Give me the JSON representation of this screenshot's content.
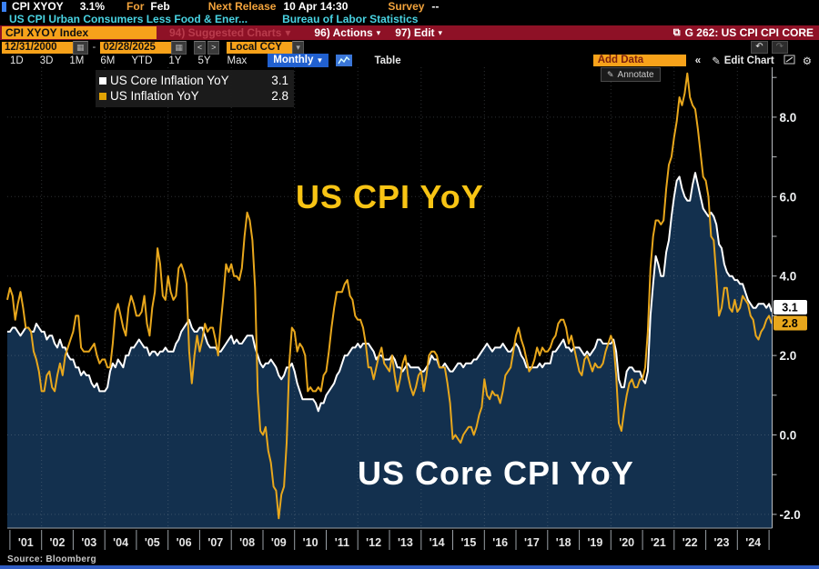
{
  "top_bar": {
    "ticker": "CPI XYOY",
    "last_value": "3.1%",
    "for_label": "For",
    "for_value": "Feb",
    "next_release_label": "Next Release",
    "next_release_value": "10 Apr 14:30",
    "survey_label": "Survey",
    "survey_value": "--",
    "description": "US CPI Urban Consumers Less Food & Ener...",
    "source_org": "Bureau of Labor Statistics"
  },
  "command_bar": {
    "security": "CPI XYOY Index",
    "suggested_charts": "94) Suggested Charts",
    "actions": "96) Actions",
    "edit": "97) Edit",
    "caret": "▾",
    "chart_id": "G 262: US CPI CPI CORE"
  },
  "toolbar": {
    "date_from": "12/31/2000",
    "date_to": "02/28/2025",
    "range_sep": "-",
    "prev": "<",
    "next": ">",
    "currency": "Local CCY",
    "periods": [
      "1D",
      "3D",
      "1M",
      "6M",
      "YTD",
      "1Y",
      "5Y",
      "Max"
    ],
    "frequency": "Monthly",
    "freq_caret": "▼",
    "table_label": "Table",
    "add_data_label": "Add Data",
    "collapse": "«",
    "edit_chart_label": "Edit Chart"
  },
  "legend": {
    "rows": [
      {
        "label": "US Core Inflation YoY",
        "value": "3.1",
        "color": "#ffffff"
      },
      {
        "label": "US Inflation YoY",
        "value": "2.8",
        "color": "#e2a405"
      }
    ]
  },
  "annotate_label": "Annotate",
  "annotations": {
    "headline_label": "US CPI YoY",
    "core_label": "US Core CPI YoY"
  },
  "source_label": "Source: Bloomberg",
  "colors": {
    "headline_line": "#e8a71c",
    "core_line": "#ffffff",
    "core_fill": "#13304e",
    "accent_orange": "#f7a21a",
    "bar_red": "#8e1126",
    "freq_blue": "#2160cf",
    "big_label_gold": "#f8c414"
  },
  "chart_data": {
    "type": "line",
    "title": "G 262: US CPI CPI CORE",
    "x_start": "2000-12",
    "x_end": "2025-02",
    "frequency": "monthly",
    "ylim": [
      -2.4,
      9.3
    ],
    "y_ticks": [
      8.0,
      6.0,
      4.0,
      2.0,
      0.0,
      -2.0
    ],
    "x_tick_labels": [
      "'01",
      "'02",
      "'03",
      "'04",
      "'05",
      "'06",
      "'07",
      "'08",
      "'09",
      "'10",
      "'11",
      "'12",
      "'13",
      "'14",
      "'15",
      "'16",
      "'17",
      "'18",
      "'19",
      "'20",
      "'21",
      "'22",
      "'23",
      "'24"
    ],
    "grid": true,
    "legend_position": "top-left",
    "series": [
      {
        "name": "US Core Inflation YoY",
        "style": "area",
        "color": "#ffffff",
        "fill": "#13304e",
        "last_value": "3.1",
        "values": [
          2.6,
          2.6,
          2.7,
          2.7,
          2.6,
          2.5,
          2.6,
          2.7,
          2.7,
          2.6,
          2.6,
          2.8,
          2.7,
          2.6,
          2.6,
          2.4,
          2.5,
          2.5,
          2.3,
          2.2,
          2.4,
          2.2,
          2.2,
          2.0,
          1.9,
          1.9,
          1.7,
          1.7,
          1.5,
          1.6,
          1.5,
          1.5,
          1.3,
          1.2,
          1.3,
          1.1,
          1.1,
          1.1,
          1.2,
          1.6,
          1.8,
          1.7,
          1.9,
          1.8,
          1.7,
          2.0,
          2.0,
          2.2,
          2.2,
          2.3,
          2.4,
          2.3,
          2.2,
          2.2,
          2.0,
          2.1,
          2.1,
          2.0,
          2.1,
          2.1,
          2.2,
          2.1,
          2.1,
          2.1,
          2.3,
          2.4,
          2.6,
          2.7,
          2.8,
          2.9,
          2.7,
          2.6,
          2.6,
          2.7,
          2.7,
          2.5,
          2.3,
          2.2,
          2.2,
          2.2,
          2.1,
          2.1,
          2.2,
          2.3,
          2.4,
          2.5,
          2.3,
          2.4,
          2.3,
          2.3,
          2.4,
          2.5,
          2.5,
          2.5,
          2.2,
          2.0,
          1.8,
          1.7,
          1.8,
          1.8,
          1.9,
          1.8,
          1.7,
          1.5,
          1.4,
          1.5,
          1.7,
          1.7,
          1.8,
          1.6,
          1.3,
          1.1,
          0.9,
          0.9,
          0.9,
          0.9,
          0.9,
          0.8,
          0.6,
          0.8,
          0.8,
          1.0,
          1.1,
          1.2,
          1.3,
          1.5,
          1.6,
          1.8,
          2.0,
          2.0,
          2.1,
          2.2,
          2.2,
          2.3,
          2.2,
          2.3,
          2.3,
          2.3,
          2.2,
          2.1,
          1.9,
          2.0,
          2.0,
          1.9,
          1.9,
          1.9,
          2.0,
          1.9,
          1.7,
          1.7,
          1.6,
          1.7,
          1.8,
          1.7,
          1.7,
          1.7,
          1.7,
          1.6,
          1.6,
          1.7,
          1.8,
          2.0,
          1.9,
          1.9,
          1.7,
          1.7,
          1.8,
          1.7,
          1.6,
          1.6,
          1.7,
          1.8,
          1.8,
          1.7,
          1.8,
          1.8,
          1.8,
          1.9,
          1.9,
          2.0,
          2.1,
          2.2,
          2.3,
          2.2,
          2.1,
          2.2,
          2.2,
          2.2,
          2.3,
          2.2,
          2.1,
          2.1,
          2.2,
          2.3,
          2.2,
          2.0,
          1.9,
          1.7,
          1.7,
          1.7,
          1.7,
          1.7,
          1.8,
          1.7,
          1.8,
          1.8,
          1.8,
          2.1,
          2.1,
          2.2,
          2.3,
          2.4,
          2.2,
          2.2,
          2.1,
          2.2,
          2.2,
          2.2,
          2.1,
          2.0,
          2.1,
          2.0,
          2.1,
          2.2,
          2.4,
          2.4,
          2.3,
          2.3,
          2.3,
          2.3,
          2.4,
          2.1,
          1.4,
          1.2,
          1.2,
          1.6,
          1.7,
          1.7,
          1.6,
          1.6,
          1.6,
          1.4,
          1.3,
          1.6,
          3.0,
          3.8,
          4.5,
          4.3,
          4.0,
          4.0,
          4.6,
          4.9,
          5.5,
          6.0,
          6.4,
          6.5,
          6.2,
          6.0,
          5.9,
          5.9,
          6.3,
          6.6,
          6.3,
          6.0,
          5.7,
          5.6,
          5.5,
          5.6,
          5.5,
          5.3,
          4.8,
          4.7,
          4.3,
          4.1,
          4.0,
          4.0,
          3.9,
          3.9,
          3.8,
          3.8,
          3.6,
          3.4,
          3.3,
          3.2,
          3.2,
          3.3,
          3.3,
          3.3,
          3.2,
          3.3,
          3.1
        ]
      },
      {
        "name": "US Inflation YoY",
        "style": "line",
        "color": "#e8a71c",
        "last_value": "2.8",
        "values": [
          3.4,
          3.7,
          3.5,
          2.9,
          3.3,
          3.6,
          3.2,
          2.7,
          2.7,
          2.6,
          2.1,
          1.9,
          1.6,
          1.1,
          1.1,
          1.5,
          1.6,
          1.2,
          1.1,
          1.5,
          1.8,
          1.5,
          2.0,
          2.2,
          2.4,
          2.6,
          3.0,
          3.0,
          2.2,
          2.1,
          2.1,
          2.1,
          2.2,
          2.3,
          2.0,
          1.8,
          1.9,
          1.9,
          1.7,
          1.7,
          2.3,
          3.1,
          3.3,
          3.0,
          2.7,
          2.5,
          3.2,
          3.5,
          3.3,
          3.0,
          3.0,
          3.1,
          3.5,
          2.8,
          2.5,
          3.2,
          3.6,
          4.7,
          4.3,
          3.5,
          3.4,
          4.0,
          3.6,
          3.4,
          3.5,
          4.2,
          4.3,
          4.1,
          3.8,
          2.1,
          1.3,
          2.0,
          2.5,
          2.1,
          2.4,
          2.8,
          2.6,
          2.7,
          2.7,
          2.4,
          2.0,
          2.8,
          3.5,
          4.3,
          4.1,
          4.3,
          4.0,
          4.0,
          3.9,
          4.2,
          5.0,
          5.6,
          5.4,
          4.9,
          3.7,
          1.1,
          0.1,
          0.0,
          0.2,
          -0.4,
          -0.7,
          -1.3,
          -1.4,
          -2.1,
          -1.5,
          -1.3,
          -0.2,
          1.8,
          2.7,
          2.6,
          2.1,
          2.3,
          2.2,
          2.0,
          1.1,
          1.2,
          1.1,
          1.1,
          1.2,
          1.1,
          1.5,
          1.6,
          2.1,
          2.7,
          3.2,
          3.6,
          3.6,
          3.6,
          3.8,
          3.9,
          3.5,
          3.4,
          3.0,
          2.9,
          2.9,
          2.7,
          2.3,
          1.7,
          1.7,
          1.4,
          1.7,
          2.0,
          2.2,
          1.8,
          1.7,
          1.6,
          2.0,
          1.5,
          1.1,
          1.4,
          1.8,
          2.0,
          1.5,
          1.2,
          1.0,
          1.2,
          1.5,
          1.6,
          1.1,
          1.5,
          2.0,
          2.1,
          2.1,
          2.0,
          1.7,
          1.7,
          1.7,
          1.3,
          0.8,
          -0.1,
          0.0,
          -0.1,
          -0.2,
          0.0,
          0.1,
          0.2,
          0.2,
          0.0,
          0.2,
          0.5,
          0.7,
          1.4,
          1.0,
          0.9,
          1.1,
          1.0,
          1.0,
          0.8,
          1.1,
          1.5,
          1.6,
          1.7,
          2.1,
          2.5,
          2.7,
          2.4,
          2.2,
          1.9,
          1.6,
          1.7,
          1.9,
          2.2,
          2.0,
          2.2,
          2.1,
          2.1,
          2.2,
          2.4,
          2.5,
          2.8,
          2.9,
          2.9,
          2.7,
          2.3,
          2.5,
          2.2,
          1.9,
          1.6,
          1.5,
          1.9,
          2.0,
          1.8,
          1.6,
          1.8,
          1.7,
          1.7,
          1.8,
          2.1,
          2.3,
          2.5,
          2.3,
          1.5,
          0.3,
          0.1,
          0.6,
          1.0,
          1.3,
          1.4,
          1.2,
          1.2,
          1.4,
          1.4,
          1.7,
          2.6,
          4.2,
          5.0,
          5.4,
          5.4,
          5.3,
          5.4,
          6.2,
          6.8,
          7.0,
          7.5,
          7.9,
          8.5,
          8.3,
          8.6,
          9.1,
          8.5,
          8.3,
          8.2,
          7.7,
          7.1,
          6.5,
          6.4,
          6.0,
          5.0,
          4.9,
          4.0,
          3.0,
          3.2,
          3.7,
          3.7,
          3.2,
          3.1,
          3.4,
          3.1,
          3.2,
          3.5,
          3.4,
          3.3,
          3.0,
          2.9,
          2.5,
          2.4,
          2.6,
          2.7,
          2.9,
          3.0,
          2.8
        ]
      }
    ]
  }
}
